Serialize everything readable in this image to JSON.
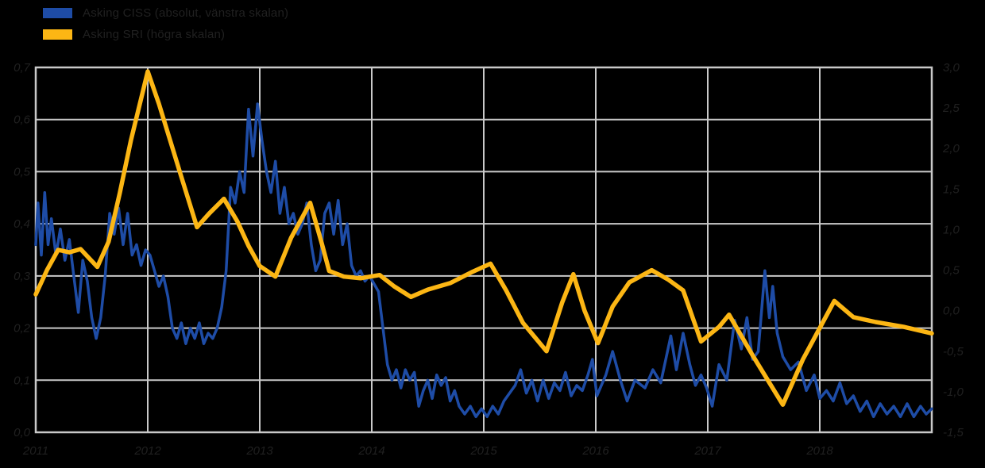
{
  "page": {
    "background_color": "#000000",
    "text_color": "#202020",
    "grid_color": "#c9c9c9"
  },
  "legend": {
    "items": [
      {
        "label": "Asking CISS (absolut, vänstra skalan)",
        "color": "#1e4ca6"
      },
      {
        "label": "Asking SRI (högra skalan)",
        "color": "#fcb614"
      }
    ]
  },
  "chart_data": {
    "type": "line",
    "title": "",
    "xlabel": "",
    "ylabel": "",
    "grid": true,
    "legend_position": "top-left",
    "x_ticks": [
      "2011",
      "2012",
      "2013",
      "2014",
      "2015",
      "2016",
      "2017",
      "2018"
    ],
    "x_range": [
      2011,
      2019
    ],
    "left_axis": {
      "min": 0.0,
      "max": 0.7,
      "ticks": [
        "0,7",
        "0,6",
        "0,5",
        "0,4",
        "0,3",
        "0,2",
        "0,1",
        "0,0"
      ]
    },
    "right_axis": {
      "min": -1.5,
      "max": 3.0,
      "ticks": [
        "3,0",
        "2,5",
        "2,0",
        "1,5",
        "1,0",
        "0,5",
        "0,0",
        "-0,5",
        "-1,0",
        "-1,5"
      ]
    },
    "series": [
      {
        "name": "Asking CISS (absolut, vänstra skalan)",
        "axis": "left",
        "color": "#1e4ca6",
        "width": 3.5,
        "x": [
          2011.0,
          2011.02,
          2011.05,
          2011.08,
          2011.11,
          2011.14,
          2011.18,
          2011.22,
          2011.26,
          2011.3,
          2011.34,
          2011.38,
          2011.42,
          2011.46,
          2011.5,
          2011.54,
          2011.58,
          2011.62,
          2011.66,
          2011.7,
          2011.74,
          2011.78,
          2011.82,
          2011.86,
          2011.9,
          2011.94,
          2011.98,
          2012.02,
          2012.06,
          2012.1,
          2012.14,
          2012.18,
          2012.22,
          2012.26,
          2012.3,
          2012.34,
          2012.38,
          2012.42,
          2012.46,
          2012.5,
          2012.54,
          2012.58,
          2012.62,
          2012.66,
          2012.7,
          2012.74,
          2012.78,
          2012.82,
          2012.86,
          2012.9,
          2012.94,
          2012.98,
          2013.02,
          2013.06,
          2013.1,
          2013.14,
          2013.18,
          2013.22,
          2013.26,
          2013.3,
          2013.34,
          2013.38,
          2013.42,
          2013.46,
          2013.5,
          2013.54,
          2013.58,
          2013.62,
          2013.66,
          2013.7,
          2013.74,
          2013.78,
          2013.82,
          2013.86,
          2013.9,
          2013.94,
          2013.98,
          2014.02,
          2014.06,
          2014.1,
          2014.14,
          2014.18,
          2014.22,
          2014.26,
          2014.3,
          2014.34,
          2014.38,
          2014.42,
          2014.46,
          2014.5,
          2014.54,
          2014.58,
          2014.62,
          2014.66,
          2014.7,
          2014.74,
          2014.78,
          2014.83,
          2014.88,
          2014.93,
          2014.98,
          2015.03,
          2015.08,
          2015.13,
          2015.18,
          2015.23,
          2015.28,
          2015.33,
          2015.38,
          2015.43,
          2015.48,
          2015.53,
          2015.58,
          2015.63,
          2015.68,
          2015.73,
          2015.78,
          2015.83,
          2015.88,
          2015.93,
          2015.97,
          2016.01,
          2016.09,
          2016.15,
          2016.22,
          2016.28,
          2016.35,
          2016.44,
          2016.51,
          2016.58,
          2016.67,
          2016.72,
          2016.78,
          2016.84,
          2016.89,
          2016.94,
          2016.99,
          2017.04,
          2017.1,
          2017.17,
          2017.24,
          2017.3,
          2017.35,
          2017.4,
          2017.45,
          2017.51,
          2017.55,
          2017.58,
          2017.62,
          2017.67,
          2017.74,
          2017.81,
          2017.88,
          2017.95,
          2018.0,
          2018.06,
          2018.12,
          2018.18,
          2018.24,
          2018.3,
          2018.36,
          2018.42,
          2018.48,
          2018.54,
          2018.6,
          2018.66,
          2018.72,
          2018.78,
          2018.84,
          2018.9,
          2018.95,
          2019.0
        ],
        "y": [
          0.36,
          0.44,
          0.34,
          0.46,
          0.36,
          0.41,
          0.34,
          0.39,
          0.33,
          0.37,
          0.3,
          0.23,
          0.33,
          0.29,
          0.22,
          0.18,
          0.22,
          0.3,
          0.42,
          0.38,
          0.43,
          0.36,
          0.42,
          0.34,
          0.36,
          0.32,
          0.35,
          0.34,
          0.31,
          0.28,
          0.3,
          0.26,
          0.2,
          0.18,
          0.21,
          0.17,
          0.2,
          0.18,
          0.21,
          0.17,
          0.19,
          0.18,
          0.2,
          0.24,
          0.31,
          0.47,
          0.44,
          0.5,
          0.46,
          0.62,
          0.53,
          0.63,
          0.56,
          0.5,
          0.46,
          0.52,
          0.42,
          0.47,
          0.4,
          0.42,
          0.38,
          0.4,
          0.44,
          0.36,
          0.31,
          0.33,
          0.42,
          0.44,
          0.38,
          0.445,
          0.36,
          0.4,
          0.32,
          0.3,
          0.31,
          0.29,
          0.3,
          0.285,
          0.27,
          0.2,
          0.13,
          0.1,
          0.12,
          0.085,
          0.12,
          0.1,
          0.115,
          0.05,
          0.08,
          0.1,
          0.065,
          0.11,
          0.09,
          0.105,
          0.06,
          0.08,
          0.05,
          0.035,
          0.05,
          0.03,
          0.045,
          0.03,
          0.05,
          0.035,
          0.06,
          0.075,
          0.09,
          0.12,
          0.075,
          0.1,
          0.06,
          0.1,
          0.065,
          0.095,
          0.08,
          0.115,
          0.07,
          0.09,
          0.08,
          0.11,
          0.14,
          0.07,
          0.11,
          0.155,
          0.1,
          0.06,
          0.1,
          0.085,
          0.12,
          0.095,
          0.185,
          0.12,
          0.19,
          0.13,
          0.09,
          0.11,
          0.085,
          0.05,
          0.13,
          0.1,
          0.215,
          0.16,
          0.22,
          0.14,
          0.155,
          0.31,
          0.22,
          0.28,
          0.19,
          0.145,
          0.12,
          0.135,
          0.08,
          0.11,
          0.065,
          0.08,
          0.06,
          0.095,
          0.055,
          0.07,
          0.04,
          0.06,
          0.03,
          0.055,
          0.035,
          0.05,
          0.03,
          0.055,
          0.03,
          0.05,
          0.035,
          0.045
        ]
      },
      {
        "name": "Asking SRI (högra skalan)",
        "axis": "right",
        "color": "#fcb614",
        "width": 5.5,
        "x": [
          2011.0,
          2011.1,
          2011.2,
          2011.3,
          2011.4,
          2011.55,
          2011.65,
          2011.75,
          2011.85,
          2012.0,
          2012.1,
          2012.2,
          2012.3,
          2012.44,
          2012.55,
          2012.68,
          2012.8,
          2012.9,
          2013.0,
          2013.14,
          2013.28,
          2013.45,
          2013.55,
          2013.62,
          2013.75,
          2013.9,
          2014.07,
          2014.2,
          2014.35,
          2014.5,
          2014.7,
          2014.9,
          2015.06,
          2015.2,
          2015.35,
          2015.56,
          2015.7,
          2015.8,
          2015.9,
          2016.02,
          2016.15,
          2016.3,
          2016.5,
          2016.65,
          2016.78,
          2016.94,
          2017.1,
          2017.19,
          2017.4,
          2017.67,
          2017.85,
          2018.13,
          2018.3,
          2018.5,
          2018.75,
          2019.0
        ],
        "y": [
          0.2,
          0.5,
          0.75,
          0.72,
          0.76,
          0.54,
          0.85,
          1.45,
          2.1,
          2.95,
          2.55,
          2.1,
          1.65,
          1.03,
          1.2,
          1.38,
          1.1,
          0.8,
          0.55,
          0.42,
          0.9,
          1.33,
          0.85,
          0.49,
          0.42,
          0.4,
          0.44,
          0.3,
          0.17,
          0.26,
          0.34,
          0.48,
          0.58,
          0.25,
          -0.15,
          -0.5,
          0.1,
          0.45,
          0.0,
          -0.4,
          0.05,
          0.35,
          0.5,
          0.38,
          0.25,
          -0.38,
          -0.2,
          -0.05,
          -0.55,
          -1.16,
          -0.6,
          0.12,
          -0.08,
          -0.14,
          -0.2,
          -0.28
        ]
      }
    ],
    "plot_style": {
      "background": "#000000",
      "grid_color": "#c9c9c9",
      "border_color": "#c9c9c9",
      "tick_text_color": "#202020"
    }
  }
}
